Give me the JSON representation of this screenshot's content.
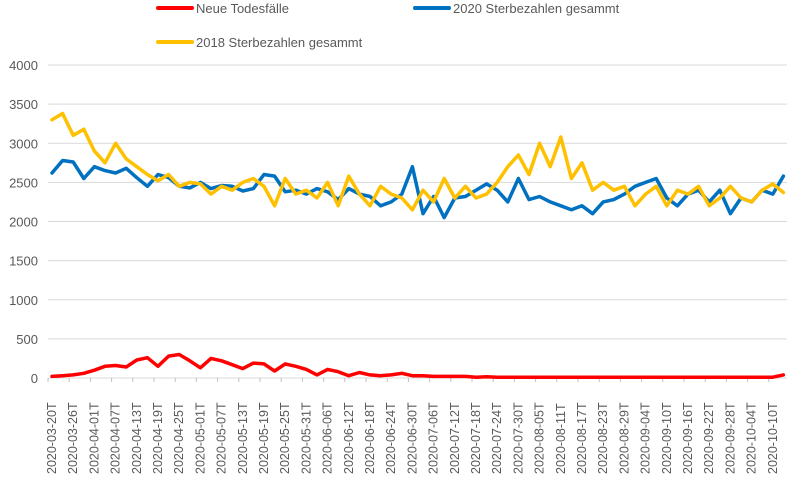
{
  "chart_data": {
    "type": "line",
    "title": "",
    "xlabel": "",
    "ylabel": "",
    "ylim": [
      0,
      4000
    ],
    "yticks": [
      0,
      500,
      1000,
      1500,
      2000,
      2500,
      3000,
      3500,
      4000
    ],
    "grid": true,
    "legend_position": "top",
    "x_start": "2020-03-20",
    "x_step_days": 3,
    "x_tick_labels": [
      "2020-03-20T",
      "2020-03-26T",
      "2020-04-01T",
      "2020-04-07T",
      "2020-04-13T",
      "2020-04-19T",
      "2020-04-25T",
      "2020-05-01T",
      "2020-05-07T",
      "2020-05-13T",
      "2020-05-19T",
      "2020-05-25T",
      "2020-05-31T",
      "2020-06-06T",
      "2020-06-12T",
      "2020-06-18T",
      "2020-06-24T",
      "2020-06-30T",
      "2020-07-06T",
      "2020-07-12T",
      "2020-07-18T",
      "2020-07-24T",
      "2020-07-30T",
      "2020-08-05T",
      "2020-08-11T",
      "2020-08-17T",
      "2020-08-23T",
      "2020-08-29T",
      "2020-09-04T",
      "2020-09-10T",
      "2020-09-16T",
      "2020-09-22T",
      "2020-09-28T",
      "2020-10-04T",
      "2020-10-10T"
    ],
    "series": [
      {
        "name": "Neue Todesfälle",
        "color": "#ff0000",
        "values": [
          20,
          30,
          40,
          60,
          100,
          150,
          160,
          140,
          230,
          260,
          150,
          280,
          300,
          220,
          130,
          250,
          220,
          170,
          120,
          190,
          180,
          90,
          180,
          150,
          110,
          40,
          110,
          80,
          30,
          70,
          40,
          30,
          40,
          60,
          30,
          30,
          20,
          20,
          20,
          20,
          10,
          15,
          10,
          10,
          10,
          10,
          10,
          10,
          10,
          10,
          10,
          10,
          10,
          10,
          10,
          10,
          10,
          10,
          10,
          10,
          10,
          10,
          10,
          10,
          10,
          10,
          10,
          10,
          10,
          40
        ]
      },
      {
        "name": "2020 Sterbezahlen gesammt",
        "color": "#0070c0",
        "values": [
          2620,
          2780,
          2760,
          2550,
          2700,
          2650,
          2620,
          2680,
          2560,
          2450,
          2600,
          2560,
          2450,
          2430,
          2500,
          2420,
          2460,
          2450,
          2390,
          2420,
          2600,
          2580,
          2380,
          2400,
          2350,
          2420,
          2380,
          2280,
          2420,
          2350,
          2320,
          2200,
          2250,
          2350,
          2700,
          2100,
          2320,
          2050,
          2300,
          2320,
          2400,
          2480,
          2400,
          2250,
          2550,
          2280,
          2320,
          2250,
          2200,
          2150,
          2200,
          2100,
          2250,
          2280,
          2350,
          2450,
          2500,
          2550,
          2300,
          2200,
          2350,
          2400,
          2250,
          2400,
          2100,
          2300,
          2250,
          2400,
          2350,
          2580
        ]
      },
      {
        "name": "2018 Sterbezahlen gesammt",
        "color": "#ffc000",
        "values": [
          3300,
          3380,
          3100,
          3180,
          2900,
          2750,
          3000,
          2800,
          2700,
          2600,
          2520,
          2600,
          2450,
          2500,
          2480,
          2350,
          2450,
          2400,
          2500,
          2550,
          2450,
          2200,
          2550,
          2350,
          2400,
          2300,
          2500,
          2200,
          2580,
          2350,
          2200,
          2450,
          2350,
          2300,
          2150,
          2400,
          2250,
          2550,
          2300,
          2450,
          2300,
          2350,
          2500,
          2700,
          2850,
          2600,
          3000,
          2700,
          3080,
          2550,
          2750,
          2400,
          2500,
          2400,
          2450,
          2200,
          2350,
          2450,
          2200,
          2400,
          2350,
          2450,
          2200,
          2300,
          2450,
          2300,
          2250,
          2400,
          2480,
          2370
        ]
      }
    ]
  }
}
